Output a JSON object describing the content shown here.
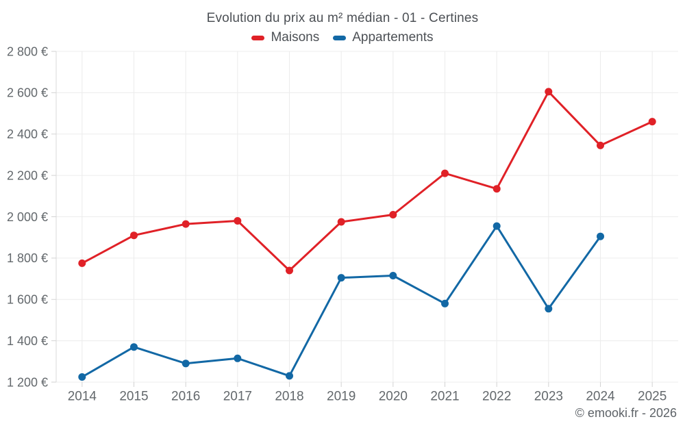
{
  "header": {
    "title": "Evolution du prix au m² médian - 01 - Certines"
  },
  "legend": {
    "items": [
      {
        "label": "Maisons"
      },
      {
        "label": "Appartements"
      }
    ]
  },
  "footer": {
    "text": "© emooki.fr - 2026"
  },
  "chart_data": {
    "type": "line",
    "title": "Evolution du prix au m² médian - 01 - Certines",
    "categories": [
      "2014",
      "2015",
      "2016",
      "2017",
      "2018",
      "2019",
      "2020",
      "2021",
      "2022",
      "2023",
      "2024",
      "2025"
    ],
    "series": [
      {
        "name": "Maisons",
        "color": "#e02127",
        "values": [
          1775,
          1910,
          1965,
          1980,
          1740,
          1975,
          2010,
          2210,
          2135,
          2605,
          2345,
          2460
        ]
      },
      {
        "name": "Appartements",
        "color": "#1268a5",
        "values": [
          1225,
          1370,
          1290,
          1315,
          1230,
          1705,
          1715,
          1580,
          1955,
          1555,
          1905,
          null
        ]
      }
    ],
    "xlabel": "",
    "ylabel": "",
    "ylim": [
      1200,
      2800
    ],
    "ytick_step": 200,
    "ytick_labels": [
      "1 200 €",
      "1 400 €",
      "1 600 €",
      "1 800 €",
      "2 000 €",
      "2 200 €",
      "2 400 €",
      "2 600 €",
      "2 800 €"
    ],
    "grid": true,
    "legend_position": "top",
    "currency": "€"
  },
  "colors": {
    "grid": "#ececec",
    "axis": "#d8d8d8",
    "tick": "#d2d2d2",
    "tick_label": "#63686c",
    "title_text": "#4c5055",
    "footer_text": "#5d6267"
  }
}
